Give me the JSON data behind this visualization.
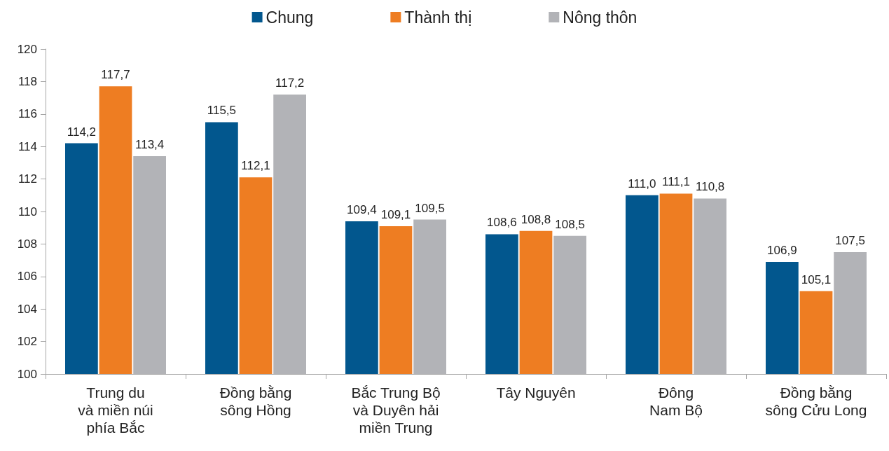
{
  "chart_data": {
    "type": "bar",
    "categories": [
      "Trung du\nvà miền núi\nphía Bắc",
      "Đồng bằng\nsông Hồng",
      "Bắc Trung Bộ\nvà Duyên hải\nmiền Trung",
      "Tây Nguyên",
      "Đông\nNam Bộ",
      "Đồng bằng\nsông Cửu Long"
    ],
    "series": [
      {
        "name": "Chung",
        "color": "#02578e",
        "values": [
          114.2,
          115.5,
          109.4,
          108.6,
          111.0,
          106.9
        ],
        "value_labels": [
          "114,2",
          "115,5",
          "109,4",
          "108,6",
          "111,0",
          "106,9"
        ]
      },
      {
        "name": "Thành thị",
        "color": "#ee7d22",
        "values": [
          117.7,
          112.1,
          109.1,
          108.8,
          111.1,
          105.1
        ],
        "value_labels": [
          "117,7",
          "112,1",
          "109,1",
          "108,8",
          "111,1",
          "105,1"
        ]
      },
      {
        "name": "Nông thôn",
        "color": "#b2b3b7",
        "values": [
          113.4,
          117.2,
          109.5,
          108.5,
          110.8,
          107.5
        ],
        "value_labels": [
          "113,4",
          "117,2",
          "109,5",
          "108,5",
          "110,8",
          "107,5"
        ]
      }
    ],
    "ylim": [
      100,
      120
    ],
    "yticks": [
      100,
      102,
      104,
      106,
      108,
      110,
      112,
      114,
      116,
      118,
      120
    ],
    "legend": "top"
  }
}
